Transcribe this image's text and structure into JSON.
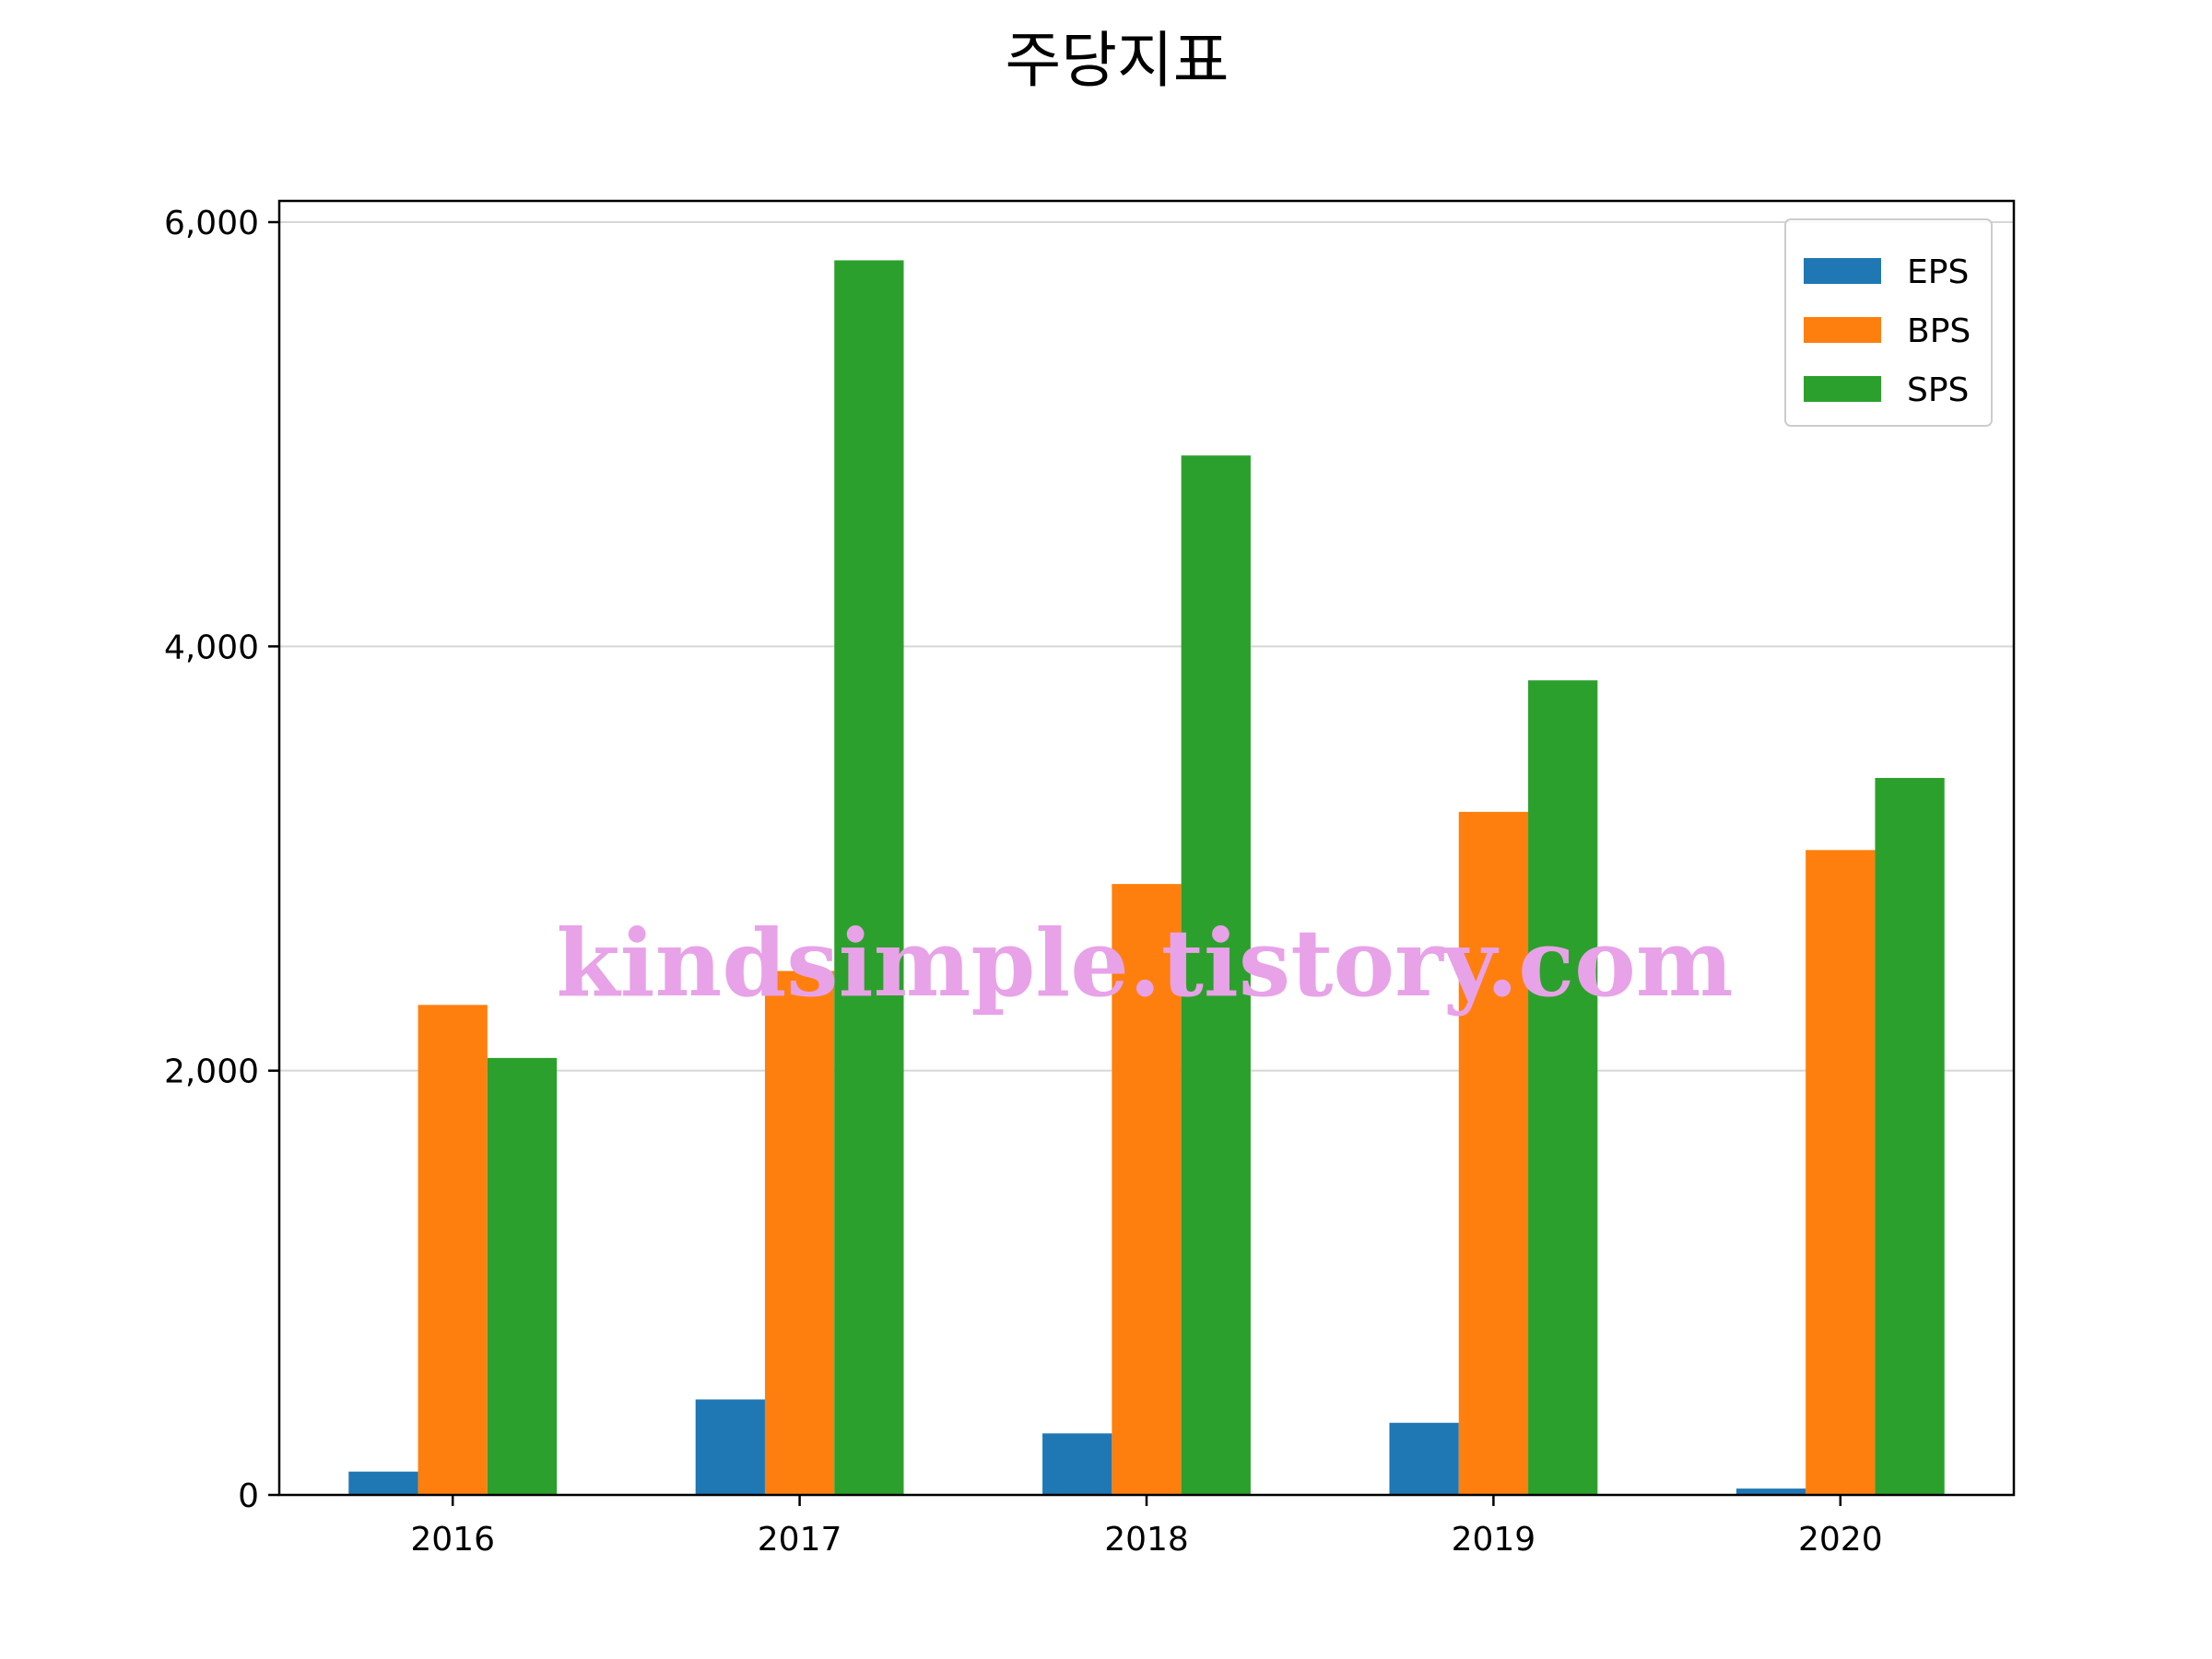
{
  "chart_data": {
    "type": "bar",
    "title": "주당지표",
    "xlabel": "",
    "ylabel": "",
    "categories": [
      "2016",
      "2017",
      "2018",
      "2019",
      "2020"
    ],
    "series": [
      {
        "name": "EPS",
        "values": [
          110,
          450,
          290,
          340,
          30
        ],
        "color": "#1f77b4"
      },
      {
        "name": "BPS",
        "values": [
          2310,
          2470,
          2880,
          3220,
          3040
        ],
        "color": "#ff7f0e"
      },
      {
        "name": "SPS",
        "values": [
          2060,
          5820,
          4900,
          3840,
          3380
        ],
        "color": "#2ca02c"
      }
    ],
    "ylim": [
      0,
      6100
    ],
    "yticks": [
      0,
      2000,
      4000,
      6000
    ],
    "ytick_labels": [
      "0",
      "2,000",
      "4,000",
      "6,000"
    ],
    "grid": "y",
    "legend": "top-right"
  },
  "watermark": "kindsimple.tistory.com"
}
